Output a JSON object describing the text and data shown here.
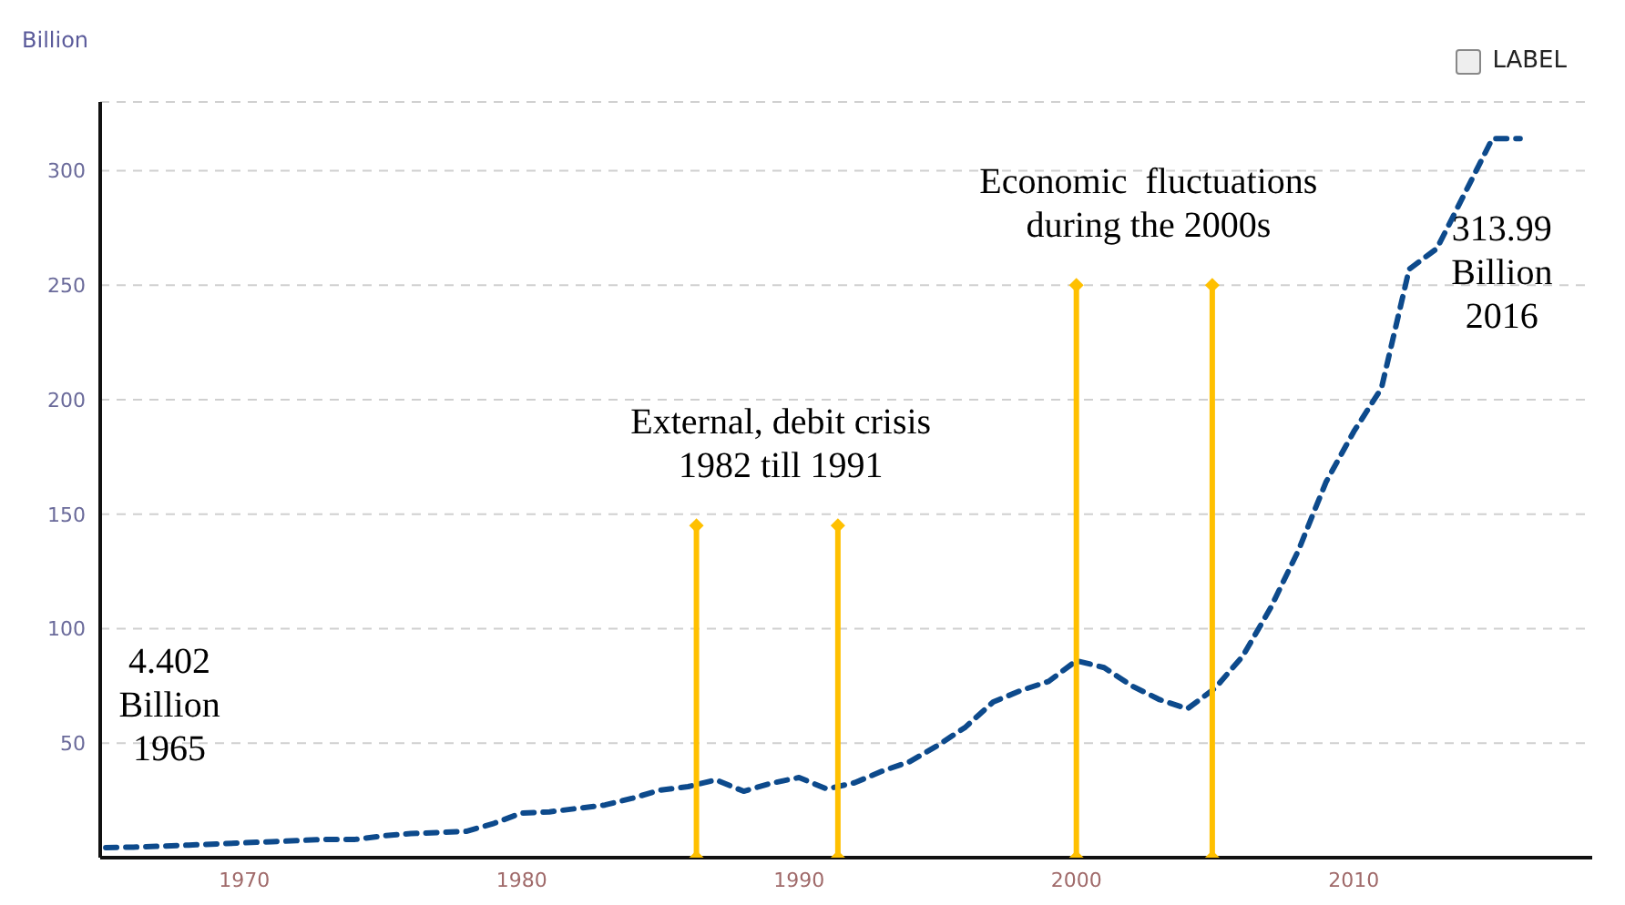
{
  "chart_data": {
    "type": "line",
    "ylabel": "Billion",
    "xlim": [
      1964.8,
      2018.6
    ],
    "xticks": [
      1970,
      1980,
      1990,
      2000,
      2010
    ],
    "ylim": [
      0,
      330
    ],
    "yticks": [
      50,
      100,
      150,
      200,
      250,
      300
    ],
    "grid": "y",
    "legend": "top right",
    "series": [
      {
        "name": "LABEL",
        "color": "#0d4a8c",
        "line_style": "dashed",
        "marker": "none",
        "x": [
          1965,
          1966,
          1967,
          1968,
          1969,
          1970,
          1971,
          1972,
          1973,
          1974,
          1975,
          1976,
          1977,
          1978,
          1979,
          1980,
          1981,
          1982,
          1983,
          1984,
          1985,
          1986,
          1987,
          1988,
          1989,
          1990,
          1991,
          1992,
          1993,
          1994,
          1995,
          1996,
          1997,
          1998,
          1999,
          2000,
          2001,
          2002,
          2003,
          2004,
          2005,
          2006,
          2007,
          2008,
          2009,
          2010,
          2011,
          2012,
          2013,
          2014,
          2015,
          2016
        ],
        "values": [
          4.402,
          4.6,
          5,
          5.5,
          6,
          6.5,
          7,
          7.5,
          8,
          8,
          9.5,
          10.5,
          11,
          11.5,
          15,
          19.5,
          20,
          21.5,
          23,
          26,
          29.5,
          31,
          34,
          29,
          32.5,
          35,
          30,
          32.7,
          37.8,
          42,
          49,
          57,
          68,
          73,
          77,
          86,
          83,
          75,
          69,
          65,
          74,
          88,
          109,
          134,
          164,
          186,
          205,
          257,
          266,
          290,
          314,
          313.99
        ]
      },
      {
        "color": "#ffc000",
        "line_style": "solid",
        "marker": "diamond",
        "x": [
          1986.3,
          1986.3
        ],
        "values": [
          0,
          145
        ]
      },
      {
        "color": "#ffc000",
        "line_style": "solid",
        "marker": "diamond",
        "x": [
          1991.4,
          1991.4
        ],
        "values": [
          0,
          145
        ]
      },
      {
        "color": "#ffc000",
        "line_style": "solid",
        "marker": "diamond",
        "x": [
          2000,
          2000
        ],
        "values": [
          0,
          250
        ]
      },
      {
        "color": "#ffc000",
        "line_style": "solid",
        "marker": "diamond",
        "x": [
          2004.9,
          2004.9
        ],
        "values": [
          0,
          250
        ]
      }
    ],
    "annotations": [
      {
        "text": "4.402\nBillion\n1965",
        "x": 1965,
        "y": 4.402
      },
      "External, debit crisis\n1982 till 1991",
      "Economic  fluctuations\nduring the 2000s",
      {
        "text": "313.99\nBillion\n2016",
        "x": 2016,
        "y": 313.99
      }
    ]
  }
}
